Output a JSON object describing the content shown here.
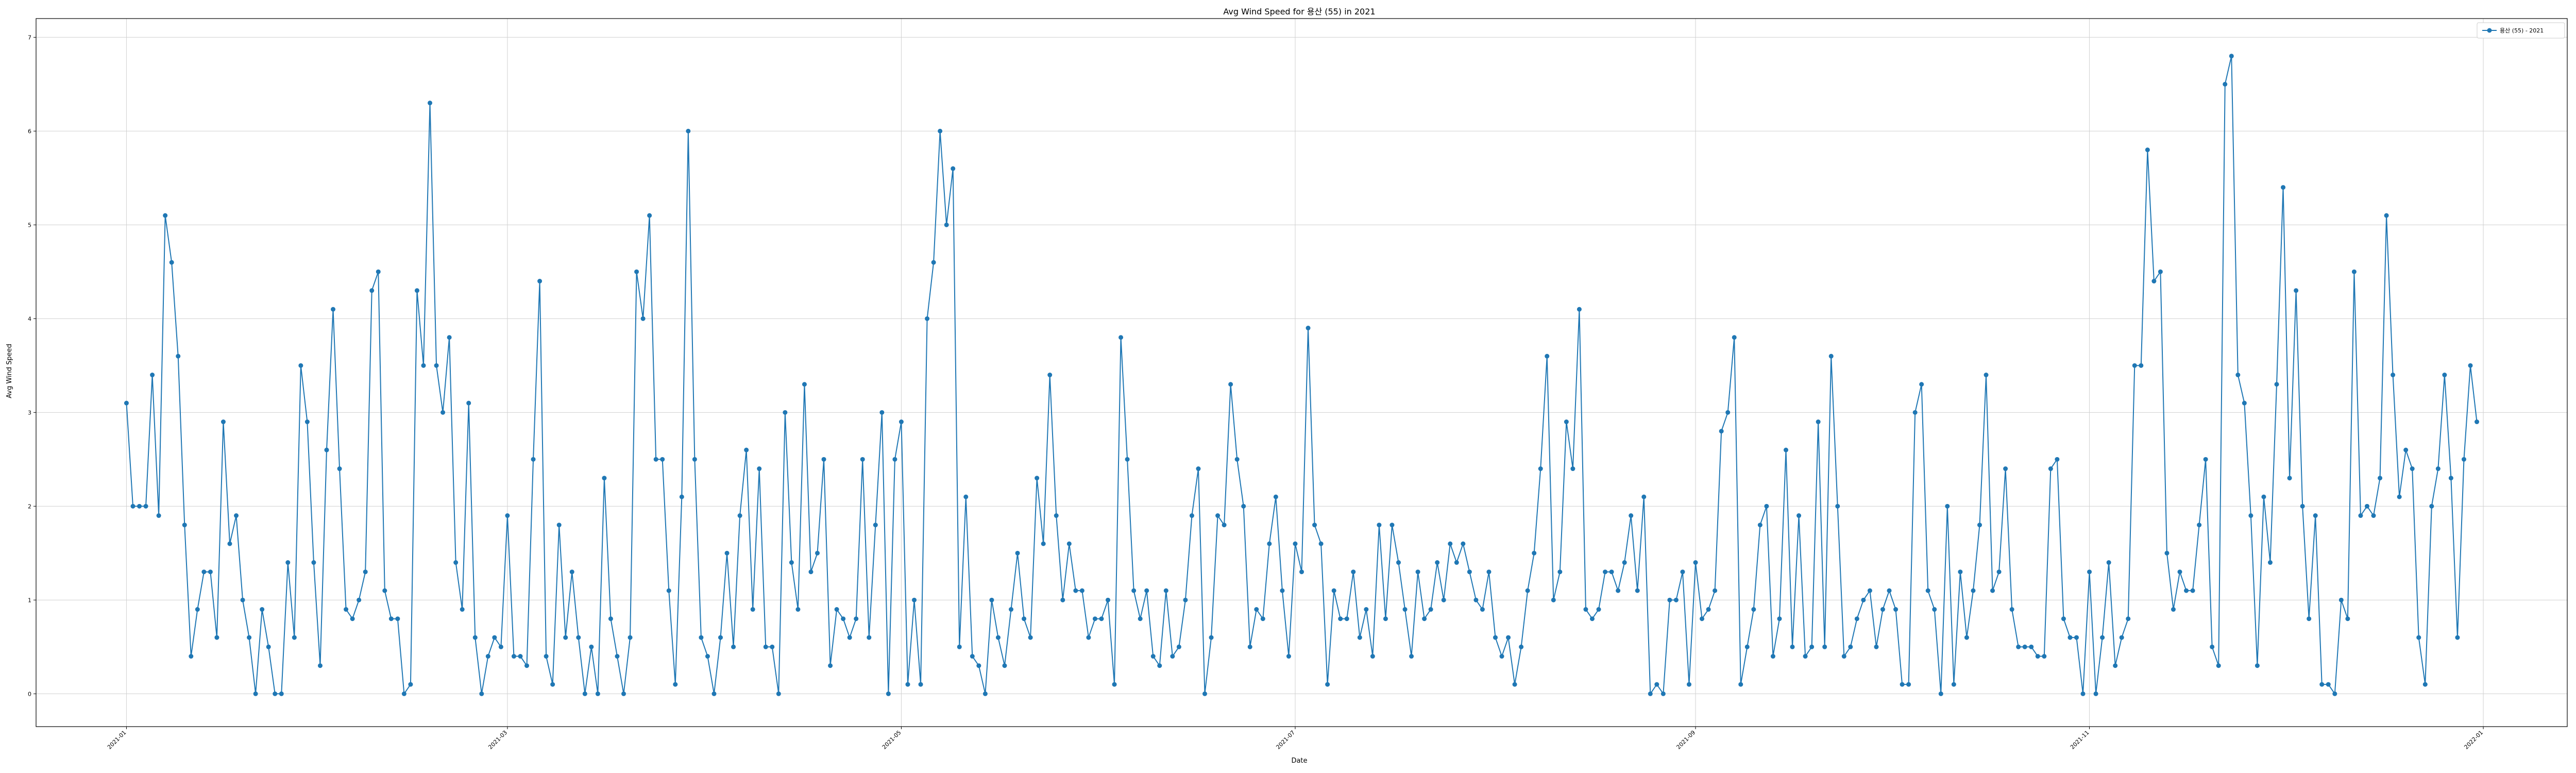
{
  "chart_data": {
    "type": "line",
    "title": "Avg Wind Speed for 용산 (55) in 2021",
    "xlabel": "Date",
    "ylabel": "Avg Wind Speed",
    "legend_position": "top-right",
    "grid": true,
    "x_range": [
      "2020-12-18",
      "2022-01-14"
    ],
    "ylim": [
      -0.35,
      7.2
    ],
    "yticks": [
      0,
      1,
      2,
      3,
      4,
      5,
      6,
      7
    ],
    "xticks": [
      {
        "date": "2021-01-01",
        "label": "2021-01"
      },
      {
        "date": "2021-03-01",
        "label": "2021-03"
      },
      {
        "date": "2021-05-01",
        "label": "2021-05"
      },
      {
        "date": "2021-07-01",
        "label": "2021-07"
      },
      {
        "date": "2021-09-01",
        "label": "2021-09"
      },
      {
        "date": "2021-11-01",
        "label": "2021-11"
      },
      {
        "date": "2022-01-01",
        "label": "2022-01"
      }
    ],
    "x_start": "2021-01-01",
    "series": [
      {
        "name": "용산 (55) - 2021",
        "color": "#1f77b4",
        "values": [
          3.1,
          2,
          2,
          2,
          3.4,
          1.9,
          5.1,
          4.6,
          3.6,
          1.8,
          0.4,
          0.9,
          1.3,
          1.3,
          0.6,
          2.9,
          1.6,
          1.9,
          1,
          0.6,
          0,
          0.9,
          0.5,
          0,
          0,
          1.4,
          0.6,
          3.5,
          2.9,
          1.4,
          0.3,
          2.6,
          4.1,
          2.4,
          0.9,
          0.8,
          1,
          1.3,
          4.3,
          4.5,
          1.1,
          0.8,
          0.8,
          0,
          0.1,
          4.3,
          3.5,
          6.3,
          3.5,
          3,
          3.8,
          1.4,
          0.9,
          3.1,
          0.6,
          0,
          0.4,
          0.6,
          0.5,
          1.9,
          0.4,
          0.4,
          0.3,
          2.5,
          4.4,
          0.4,
          0.1,
          1.8,
          0.6,
          1.3,
          0.6,
          0,
          0.5,
          0,
          2.3,
          0.8,
          0.4,
          0,
          0.6,
          4.5,
          4,
          5.1,
          2.5,
          2.5,
          1.1,
          0.1,
          2.1,
          6,
          2.5,
          0.6,
          0.4,
          0,
          0.6,
          1.5,
          0.5,
          1.9,
          2.6,
          0.9,
          2.4,
          0.5,
          0.5,
          0,
          3,
          1.4,
          0.9,
          3.3,
          1.3,
          1.5,
          2.5,
          0.3,
          0.9,
          0.8,
          0.6,
          0.8,
          2.5,
          0.6,
          1.8,
          3,
          0,
          2.5,
          2.9,
          0.1,
          1,
          0.1,
          4,
          4.6,
          6,
          5,
          5.6,
          0.5,
          2.1,
          0.4,
          0.3,
          0,
          1,
          0.6,
          0.3,
          0.9,
          1.5,
          0.8,
          0.6,
          2.3,
          1.6,
          3.4,
          1.9,
          1,
          1.6,
          1.1,
          1.1,
          0.6,
          0.8,
          0.8,
          1,
          0.1,
          3.8,
          2.5,
          1.1,
          0.8,
          1.1,
          0.4,
          0.3,
          1.1,
          0.4,
          0.5,
          1,
          1.9,
          2.4,
          0,
          0.6,
          1.9,
          1.8,
          3.3,
          2.5,
          2,
          0.5,
          0.9,
          0.8,
          1.6,
          2.1,
          1.1,
          0.4,
          1.6,
          1.3,
          3.9,
          1.8,
          1.6,
          0.1,
          1.1,
          0.8,
          0.8,
          1.3,
          0.6,
          0.9,
          0.4,
          1.8,
          0.8,
          1.8,
          1.4,
          0.9,
          0.4,
          1.3,
          0.8,
          0.9,
          1.4,
          1,
          1.6,
          1.4,
          1.6,
          1.3,
          1,
          0.9,
          1.3,
          0.6,
          0.4,
          0.6,
          0.1,
          0.5,
          1.1,
          1.5,
          2.4,
          3.6,
          1,
          1.3,
          2.9,
          2.4,
          4.1,
          0.9,
          0.8,
          0.9,
          1.3,
          1.3,
          1.1,
          1.4,
          1.9,
          1.1,
          2.1,
          0,
          0.1,
          0,
          1,
          1,
          1.3,
          0.1,
          1.4,
          0.8,
          0.9,
          1.1,
          2.8,
          3,
          3.8,
          0.1,
          0.5,
          0.9,
          1.8,
          2,
          0.4,
          0.8,
          2.6,
          0.5,
          1.9,
          0.4,
          0.5,
          2.9,
          0.5,
          3.6,
          2,
          0.4,
          0.5,
          0.8,
          1,
          1.1,
          0.5,
          0.9,
          1.1,
          0.9,
          0.1,
          0.1,
          3,
          3.3,
          1.1,
          0.9,
          0,
          2,
          0.1,
          1.3,
          0.6,
          1.1,
          1.8,
          3.4,
          1.1,
          1.3,
          2.4,
          0.9,
          0.5,
          0.5,
          0.5,
          0.4,
          0.4,
          2.4,
          2.5,
          0.8,
          0.6,
          0.6,
          0,
          1.3,
          0,
          0.6,
          1.4,
          0.3,
          0.6,
          0.8,
          3.5,
          3.5,
          5.8,
          4.4,
          4.5,
          1.5,
          0.9,
          1.3,
          1.1,
          1.1,
          1.8,
          2.5,
          0.5,
          0.3,
          6.5,
          6.8,
          3.4,
          3.1,
          1.9,
          0.3,
          2.1,
          1.4,
          3.3,
          5.4,
          2.3,
          4.3,
          2,
          0.8,
          1.9,
          0.1,
          0.1,
          0,
          1,
          0.8,
          4.5,
          1.9,
          2,
          1.9,
          2.3,
          5.1,
          3.4,
          2.1,
          2.6,
          2.4,
          0.6,
          0.1,
          2,
          2.4,
          3.4,
          2.3,
          0.6,
          2.5,
          3.5,
          2.9
        ]
      }
    ]
  }
}
